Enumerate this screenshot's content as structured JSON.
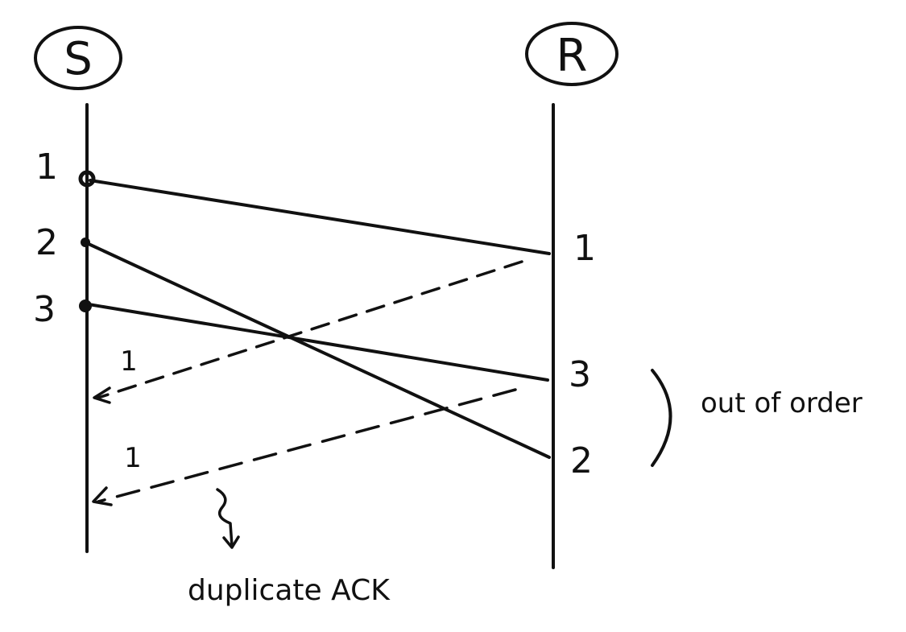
{
  "sender": {
    "label": "S"
  },
  "receiver": {
    "label": "R"
  },
  "send_labels": [
    "1",
    "2",
    "3"
  ],
  "receive_labels": [
    "1",
    "3",
    "2"
  ],
  "ack_labels": [
    "1",
    "1"
  ],
  "annotation": {
    "text": "out of order"
  },
  "duplicate": {
    "text": "duplicate ACK"
  },
  "colors": {
    "ink": "#111111",
    "background": "#ffffff"
  }
}
